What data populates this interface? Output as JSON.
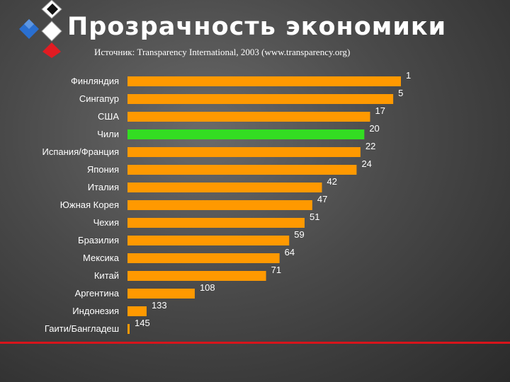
{
  "slide": {
    "title": "Прозрачность экономики",
    "subtitle": "Источник: Transparency International, 2003 (www.transparency.org)"
  },
  "colors": {
    "bar": "#ff9900",
    "highlight": "#33dd22",
    "accent_line": "#d8141b"
  },
  "chart_data": {
    "type": "bar",
    "orientation": "horizontal",
    "categories": [
      "Финляндия",
      "Сингапур",
      "США",
      "Чили",
      "Испания/Франция",
      "Япония",
      "Италия",
      "Южная Корея",
      "Чехия",
      "Бразилия",
      "Мексика",
      "Китай",
      "Аргентина",
      "Индонезия",
      "Гаити/Бангладеш"
    ],
    "values": [
      1,
      5,
      17,
      20,
      22,
      24,
      42,
      47,
      51,
      59,
      64,
      71,
      108,
      133,
      145
    ],
    "highlight_category": "Чили",
    "grid": false,
    "legend": "none"
  }
}
